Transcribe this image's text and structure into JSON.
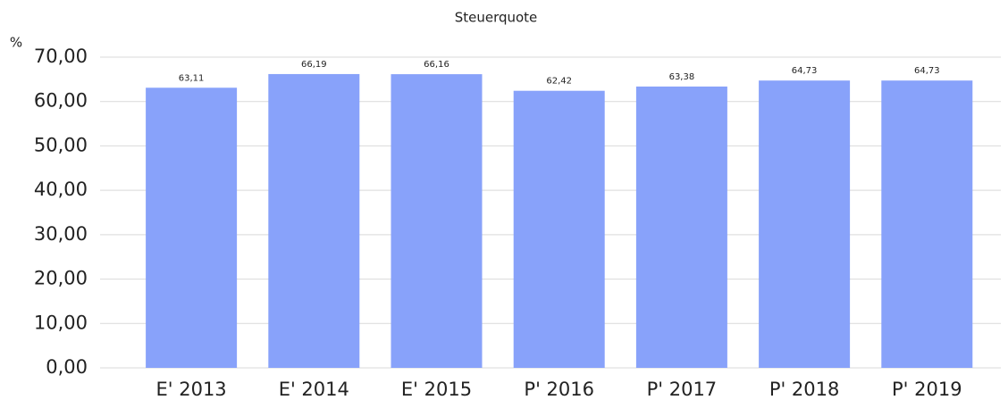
{
  "chart_data": {
    "type": "bar",
    "title": "Steuerquote",
    "y_label": "%",
    "categories": [
      "E' 2013",
      "E' 2014",
      "E' 2015",
      "P' 2016",
      "P' 2017",
      "P' 2018",
      "P' 2019"
    ],
    "values": [
      63.11,
      66.19,
      66.16,
      62.42,
      63.38,
      64.73,
      64.73
    ],
    "value_labels": [
      "63,11",
      "66,19",
      "66,16",
      "62,42",
      "63,38",
      "64,73",
      "64,73"
    ],
    "color": "#88a2fa",
    "ylim": [
      0,
      70
    ],
    "yticks": [
      {
        "value": 0,
        "label": "0,00"
      },
      {
        "value": 10,
        "label": "10,00"
      },
      {
        "value": 20,
        "label": "20,00"
      },
      {
        "value": 30,
        "label": "30,00"
      },
      {
        "value": 40,
        "label": "40,00"
      },
      {
        "value": 50,
        "label": "50,00"
      },
      {
        "value": 60,
        "label": "60,00"
      },
      {
        "value": 70,
        "label": "70,00"
      }
    ],
    "grid": true
  }
}
